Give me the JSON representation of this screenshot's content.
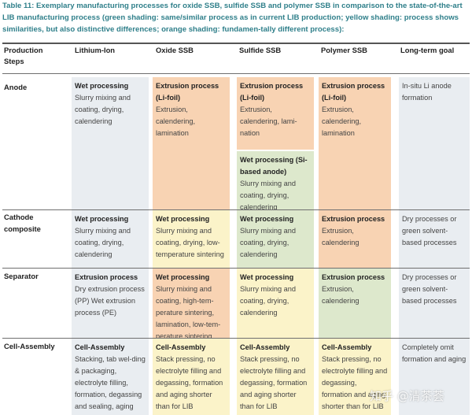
{
  "caption": "Table 11: Exemplary manufacturing processes for oxide SSB, sulfide SSB and polymer SSB in comparison to the state-of-the-art LIB manufacturing process (green shading: same/similar process as in current LIB production; yellow shading: process shows similarities, but also distinctive differences; orange shading: fundamen-tally different process):",
  "headers": {
    "steps": "Production Steps",
    "liion": "Lithium-Ion",
    "oxide": "Oxide SSB",
    "sulfide": "Sulfide SSB",
    "polymer": "Polymer SSB",
    "longterm": "Long-term goal"
  },
  "rows": {
    "anode": {
      "label": "Anode",
      "liion": {
        "title": "Wet processing",
        "body": "Slurry mixing and coating, drying, calendering"
      },
      "oxide": {
        "title": "Extrusion process (Li-foil)",
        "body": "Extrusion, calendering, lamination"
      },
      "sulfide_a": {
        "title": "Extrusion process (Li-foil)",
        "body": "Extrusion, calendering, lami-nation"
      },
      "sulfide_b": {
        "title": "Wet processing (Si-based anode)",
        "body": "Slurry mixing and coating, drying, calendering"
      },
      "polymer": {
        "title": "Extrusion process (Li-foil)",
        "body": "Extrusion, calendering, lamination"
      },
      "longterm": {
        "body": "In-situ Li anode formation"
      }
    },
    "cathode": {
      "label": "Cathode composite",
      "liion": {
        "title": "Wet processing",
        "body": "Slurry mixing and coating, drying, calendering"
      },
      "oxide": {
        "title": "Wet processing",
        "body": "Slurry mixing and coating, drying, low-temperature sintering"
      },
      "sulfide": {
        "title": "Wet processing",
        "body": "Slurry mixing and coating, drying, calendering"
      },
      "polymer": {
        "title": "Extrusion process",
        "body": "Extrusion, calendering"
      },
      "longterm": {
        "body": "Dry processes or green solvent-based processes"
      }
    },
    "separator": {
      "label": "Separator",
      "liion": {
        "title": "Extrusion process",
        "body": "Dry extrusion process (PP) Wet extrusion process (PE)"
      },
      "oxide": {
        "title": "Wet processing",
        "body": "Slurry mixing and coating, high-tem-perature sintering, lamination, low-tem-perature sintering"
      },
      "sulfide": {
        "title": "Wet processing",
        "body": "Slurry mixing and coating, drying, calendering"
      },
      "polymer": {
        "title": "Extrusion process",
        "body": "Extrusion, calendering"
      },
      "longterm": {
        "body": "Dry processes or green solvent-based processes"
      }
    },
    "assembly": {
      "label": "Cell-Assembly",
      "liion": {
        "title": "Cell-Assembly",
        "body": "Stacking, tab wel-ding & packaging, electrolyte filling, formation, degassing and sealing, aging"
      },
      "oxide": {
        "title": "Cell-Assembly",
        "body": "Stack pressing, no electrolyte filling and degassing, formation and aging shorter than for LIB"
      },
      "sulfide": {
        "title": "Cell-Assembly",
        "body": "Stack pressing, no electrolyte filling and degassing, formation and aging shorter than for LIB"
      },
      "polymer": {
        "title": "Cell-Assembly",
        "body": "Stack pressing, no electrolyte filling and degassing, formation and aging shorter than for LIB"
      },
      "longterm": {
        "body": "Completely omit formation and aging"
      }
    }
  },
  "watermark": "知乎 @清茶荟",
  "colors": {
    "green": "#dde8cc",
    "yellow": "#fbf3c9",
    "orange": "#f8d3b3",
    "neutral": "#e9edf1",
    "caption": "#2f7f8a"
  }
}
